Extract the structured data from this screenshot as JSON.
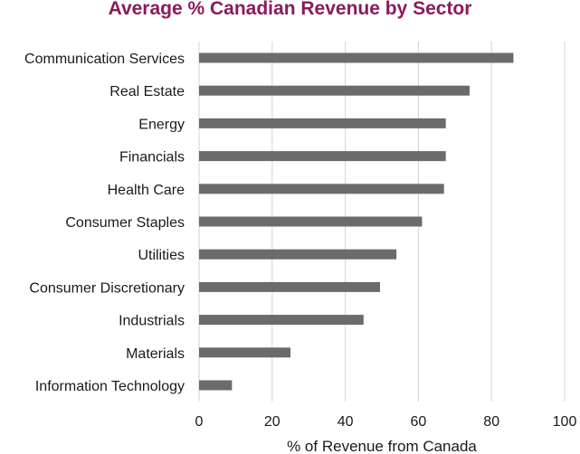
{
  "chart_data": {
    "type": "bar",
    "orientation": "horizontal",
    "title": "Average % Canadian Revenue by Sector",
    "xlabel": "% of Revenue from Canada",
    "ylabel": "",
    "categories": [
      "Communication Services",
      "Real Estate",
      "Energy",
      "Financials",
      "Health Care",
      "Consumer Staples",
      "Utilities",
      "Consumer Discretionary",
      "Industrials",
      "Materials",
      "Information Technology"
    ],
    "values": [
      86,
      74,
      67.5,
      67.5,
      67,
      61,
      54,
      49.5,
      45,
      25,
      9
    ],
    "xlim": [
      0,
      100
    ],
    "xticks": [
      0,
      20,
      40,
      60,
      80,
      100
    ],
    "xtick_labels": [
      "0",
      "20",
      "40",
      "60",
      "80",
      "100"
    ],
    "grid": "vertical",
    "legend": "none",
    "bar_color": "#6b6b6e",
    "grid_color": "#d4d4d4",
    "title_color": "#8b1a5a"
  }
}
